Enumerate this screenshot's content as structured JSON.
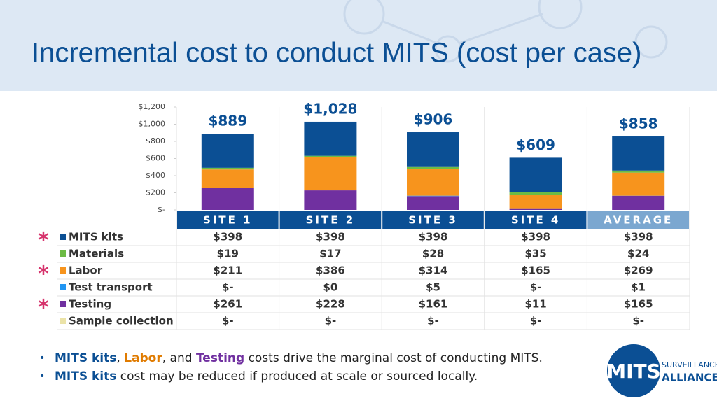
{
  "title": "Incremental cost to conduct MITS (cost per case)",
  "chart_data": {
    "type": "stacked-bar",
    "categories": [
      "SITE 1",
      "SITE 2",
      "SITE 3",
      "SITE 4",
      "AVERAGE"
    ],
    "series": [
      {
        "name": "MITS kits",
        "color": "#0b4f94",
        "values": [
          398,
          398,
          398,
          398,
          398
        ],
        "value_labels": [
          "$398",
          "$398",
          "$398",
          "$398",
          "$398"
        ]
      },
      {
        "name": "Materials",
        "color": "#6dbb45",
        "values": [
          19,
          17,
          28,
          35,
          24
        ],
        "value_labels": [
          "$19",
          "$17",
          "$28",
          "$35",
          "$24"
        ]
      },
      {
        "name": "Labor",
        "color": "#f7941d",
        "values": [
          211,
          386,
          314,
          165,
          269
        ],
        "value_labels": [
          "$211",
          "$386",
          "$314",
          "$165",
          "$269"
        ]
      },
      {
        "name": "Test transport",
        "color": "#2196f3",
        "values": [
          0,
          0,
          5,
          0,
          1
        ],
        "value_labels": [
          "$-",
          "$0",
          "$5",
          "$-",
          "$1"
        ]
      },
      {
        "name": "Testing",
        "color": "#7030a0",
        "values": [
          261,
          228,
          161,
          11,
          165
        ],
        "value_labels": [
          "$261",
          "$228",
          "$161",
          "$11",
          "$165"
        ]
      },
      {
        "name": "Sample collection",
        "color": "#ebe3a8",
        "values": [
          0,
          0,
          0,
          0,
          0
        ],
        "value_labels": [
          "$-",
          "$-",
          "$-",
          "$-",
          "$-"
        ]
      }
    ],
    "totals": [
      889,
      1028,
      906,
      609,
      858
    ],
    "total_labels": [
      "$889",
      "$1,028",
      "$906",
      "$609",
      "$858"
    ],
    "ylim": [
      0,
      1200
    ],
    "yticks": [
      {
        "value": 0,
        "label": "$-"
      },
      {
        "value": 200,
        "label": "$200"
      },
      {
        "value": 400,
        "label": "$400"
      },
      {
        "value": 600,
        "label": "$600"
      },
      {
        "value": 800,
        "label": "$800"
      },
      {
        "value": 1000,
        "label": "$1,000"
      },
      {
        "value": 1200,
        "label": "$1,200"
      }
    ],
    "marker": "*"
  },
  "bullets": [
    [
      "MITS kits",
      ", ",
      "Labor",
      ", and ",
      "Testing",
      " costs drive the marginal cost of conducting MITS."
    ],
    [
      "MITS kits",
      " cost may be reduced if produced at scale or sourced locally."
    ]
  ],
  "logo": {
    "main": "MITS",
    "top": "SURVEILLANCE",
    "bottom": "ALLIANCE"
  }
}
